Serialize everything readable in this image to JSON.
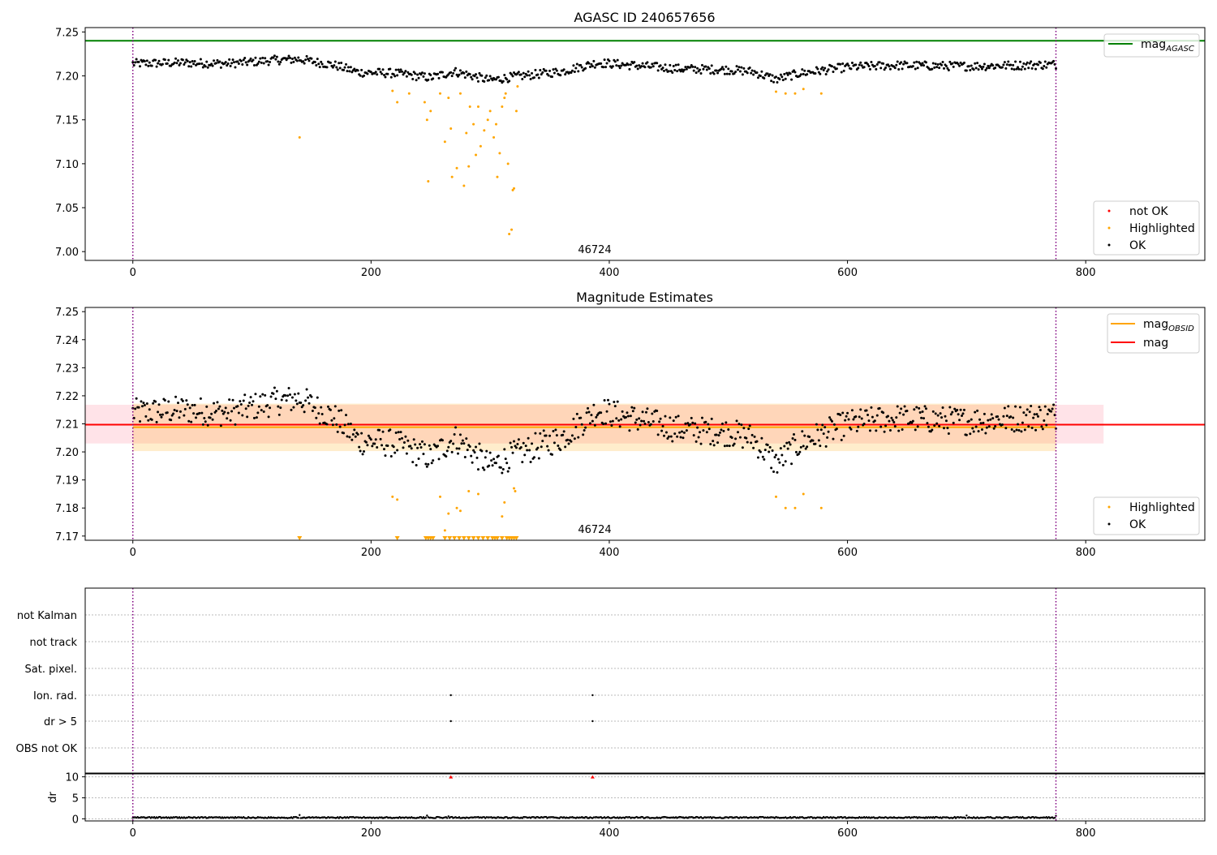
{
  "chart_data": [
    {
      "type": "scatter",
      "title": "AGASC ID 240657656",
      "xlim": [
        -40,
        900
      ],
      "ylim": [
        6.99,
        7.255
      ],
      "x_ticks": [
        "0",
        "200",
        "400",
        "600",
        "800"
      ],
      "y_ticks": [
        "7.00",
        "7.05",
        "7.10",
        "7.15",
        "7.20",
        "7.25"
      ],
      "annotation": "46724",
      "obs_bounds": [
        0,
        775
      ],
      "mag_agasc": 7.24,
      "legend_lines": [
        {
          "name": "mag_AGASC",
          "color": "#008000"
        }
      ],
      "legend_markers": [
        {
          "name": "not OK",
          "color": "#ff0000"
        },
        {
          "name": "Highlighted",
          "color": "#ffa500"
        },
        {
          "name": "OK",
          "color": "#000000"
        }
      ],
      "ok_segments": [
        [
          0,
          7.214
        ],
        [
          40,
          7.215
        ],
        [
          80,
          7.214
        ],
        [
          120,
          7.218
        ],
        [
          140,
          7.219
        ],
        [
          170,
          7.212
        ],
        [
          190,
          7.204
        ],
        [
          220,
          7.203
        ],
        [
          250,
          7.198
        ],
        [
          270,
          7.205
        ],
        [
          300,
          7.195
        ],
        [
          320,
          7.199
        ],
        [
          360,
          7.205
        ],
        [
          390,
          7.215
        ],
        [
          420,
          7.212
        ],
        [
          460,
          7.208
        ],
        [
          500,
          7.207
        ],
        [
          520,
          7.205
        ],
        [
          540,
          7.196
        ],
        [
          560,
          7.203
        ],
        [
          600,
          7.21
        ],
        [
          640,
          7.212
        ],
        [
          700,
          7.211
        ],
        [
          740,
          7.212
        ],
        [
          775,
          7.213
        ]
      ],
      "highlighted_points": [
        [
          140,
          7.13
        ],
        [
          218,
          7.183
        ],
        [
          222,
          7.17
        ],
        [
          232,
          7.18
        ],
        [
          245,
          7.17
        ],
        [
          247,
          7.15
        ],
        [
          248,
          7.08
        ],
        [
          250,
          7.16
        ],
        [
          258,
          7.18
        ],
        [
          262,
          7.125
        ],
        [
          265,
          7.175
        ],
        [
          267,
          7.14
        ],
        [
          268,
          7.085
        ],
        [
          272,
          7.095
        ],
        [
          275,
          7.18
        ],
        [
          278,
          7.075
        ],
        [
          280,
          7.135
        ],
        [
          282,
          7.097
        ],
        [
          283,
          7.165
        ],
        [
          286,
          7.145
        ],
        [
          288,
          7.11
        ],
        [
          290,
          7.165
        ],
        [
          292,
          7.12
        ],
        [
          295,
          7.138
        ],
        [
          298,
          7.15
        ],
        [
          300,
          7.16
        ],
        [
          303,
          7.13
        ],
        [
          305,
          7.145
        ],
        [
          306,
          7.085
        ],
        [
          308,
          7.112
        ],
        [
          310,
          7.165
        ],
        [
          312,
          7.175
        ],
        [
          313,
          7.18
        ],
        [
          315,
          7.1
        ],
        [
          316,
          7.02
        ],
        [
          318,
          7.025
        ],
        [
          319,
          7.07
        ],
        [
          320,
          7.072
        ],
        [
          322,
          7.16
        ],
        [
          323,
          7.188
        ],
        [
          540,
          7.182
        ],
        [
          548,
          7.18
        ],
        [
          556,
          7.18
        ],
        [
          563,
          7.185
        ],
        [
          578,
          7.18
        ]
      ],
      "not_ok_points": []
    },
    {
      "type": "scatter",
      "title": "Magnitude Estimates",
      "xlim": [
        -40,
        900
      ],
      "ylim": [
        7.1685,
        7.2515
      ],
      "x_ticks": [
        "0",
        "200",
        "400",
        "600",
        "800"
      ],
      "y_ticks": [
        "7.17",
        "7.18",
        "7.19",
        "7.20",
        "7.21",
        "7.22",
        "7.23",
        "7.24",
        "7.25"
      ],
      "annotation": "46724",
      "obs_bounds": [
        0,
        775
      ],
      "mag": 7.2097,
      "mag_band": [
        7.203,
        7.2168
      ],
      "mag_obsid": 7.2088,
      "mag_obsid_band": [
        7.2003,
        7.2172
      ],
      "legend_lines": [
        {
          "name": "mag_OBSID",
          "color": "#ffa500"
        },
        {
          "name": "mag",
          "color": "#ff0000"
        }
      ],
      "legend_markers": [
        {
          "name": "Highlighted",
          "color": "#ffa500"
        },
        {
          "name": "OK",
          "color": "#000000"
        }
      ],
      "highlighted_points": [
        [
          218,
          7.184
        ],
        [
          222,
          7.183
        ],
        [
          258,
          7.184
        ],
        [
          262,
          7.172
        ],
        [
          265,
          7.178
        ],
        [
          272,
          7.18
        ],
        [
          275,
          7.179
        ],
        [
          282,
          7.186
        ],
        [
          290,
          7.185
        ],
        [
          310,
          7.177
        ],
        [
          312,
          7.182
        ],
        [
          320,
          7.187
        ],
        [
          321,
          7.186
        ],
        [
          540,
          7.184
        ],
        [
          548,
          7.18
        ],
        [
          556,
          7.18
        ],
        [
          563,
          7.185
        ],
        [
          578,
          7.18
        ]
      ],
      "clipped_points": [
        140,
        222,
        246,
        248,
        250,
        252,
        262,
        266,
        270,
        274,
        278,
        282,
        286,
        290,
        294,
        298,
        302,
        304,
        306,
        310,
        314,
        316,
        318,
        320,
        322
      ]
    },
    {
      "type": "scatter",
      "title": "",
      "xlim": [
        -40,
        900
      ],
      "x_ticks": [
        "0",
        "200",
        "400",
        "600",
        "800"
      ],
      "flag_labels": [
        "not Kalman",
        "not track",
        "Sat. pixel.",
        "Ion. rad.",
        "dr > 5",
        "OBS not OK"
      ],
      "flag_points": [
        {
          "flag": "Ion. rad.",
          "x": 267
        },
        {
          "flag": "Ion. rad.",
          "x": 386
        },
        {
          "flag": "dr > 5",
          "x": 267
        },
        {
          "flag": "dr > 5",
          "x": 386
        }
      ],
      "dr": {
        "ylabel": "dr",
        "ylim": [
          -0.5,
          10.7
        ],
        "y_ticks": [
          "0",
          "5",
          "10"
        ],
        "typical": 0.3,
        "spikes": [
          [
            140,
            0.9
          ],
          [
            247,
            0.8
          ],
          [
            265,
            0.6
          ],
          [
            700,
            0.8
          ],
          [
            775,
            0.7
          ]
        ],
        "clipped_marks": [
          267,
          386
        ]
      },
      "obs_bounds": [
        0,
        775
      ]
    }
  ]
}
